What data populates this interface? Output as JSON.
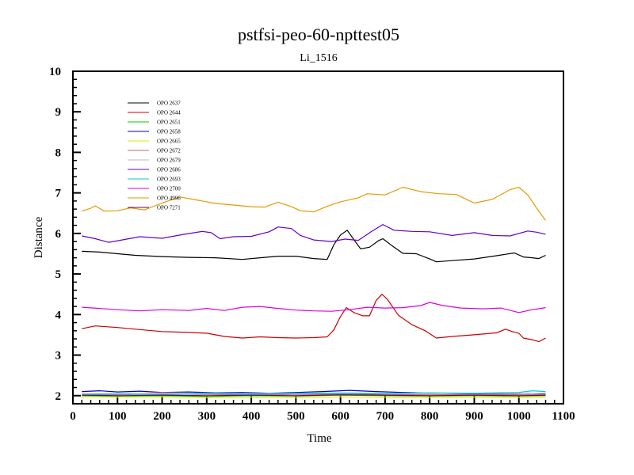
{
  "chart_data": {
    "type": "line",
    "title": "pstfsi-peo-60-npttest05",
    "subtitle": "Li_1516",
    "xlabel": "Time",
    "ylabel": "Distance",
    "xlim": [
      0,
      1100
    ],
    "ylim": [
      1.8,
      10
    ],
    "xticks": [
      0,
      100,
      200,
      300,
      400,
      500,
      600,
      700,
      800,
      900,
      1000,
      1100
    ],
    "yticks": [
      2,
      3,
      4,
      5,
      6,
      7,
      8,
      9,
      10
    ],
    "legend_position": "top-left",
    "grid": false,
    "series": [
      {
        "name": "OPO 2637",
        "color": "#000000",
        "points": [
          [
            20,
            5.56
          ],
          [
            60,
            5.54
          ],
          [
            100,
            5.5
          ],
          [
            140,
            5.46
          ],
          [
            200,
            5.43
          ],
          [
            260,
            5.41
          ],
          [
            320,
            5.4
          ],
          [
            380,
            5.36
          ],
          [
            420,
            5.4
          ],
          [
            460,
            5.44
          ],
          [
            500,
            5.44
          ],
          [
            540,
            5.38
          ],
          [
            570,
            5.36
          ],
          [
            585,
            5.72
          ],
          [
            600,
            5.96
          ],
          [
            615,
            6.08
          ],
          [
            630,
            5.85
          ],
          [
            645,
            5.62
          ],
          [
            665,
            5.66
          ],
          [
            685,
            5.82
          ],
          [
            695,
            5.87
          ],
          [
            715,
            5.7
          ],
          [
            740,
            5.51
          ],
          [
            770,
            5.5
          ],
          [
            800,
            5.37
          ],
          [
            815,
            5.3
          ],
          [
            850,
            5.33
          ],
          [
            900,
            5.37
          ],
          [
            950,
            5.45
          ],
          [
            990,
            5.52
          ],
          [
            1010,
            5.42
          ],
          [
            1030,
            5.4
          ],
          [
            1045,
            5.38
          ],
          [
            1060,
            5.46
          ]
        ]
      },
      {
        "name": "OPO 2644",
        "color": "#cc0000",
        "points": [
          [
            20,
            3.65
          ],
          [
            50,
            3.72
          ],
          [
            100,
            3.68
          ],
          [
            150,
            3.63
          ],
          [
            200,
            3.58
          ],
          [
            260,
            3.56
          ],
          [
            300,
            3.54
          ],
          [
            340,
            3.46
          ],
          [
            380,
            3.42
          ],
          [
            420,
            3.45
          ],
          [
            460,
            3.43
          ],
          [
            500,
            3.42
          ],
          [
            540,
            3.43
          ],
          [
            570,
            3.45
          ],
          [
            585,
            3.62
          ],
          [
            600,
            3.95
          ],
          [
            613,
            4.17
          ],
          [
            630,
            4.05
          ],
          [
            650,
            3.97
          ],
          [
            665,
            3.97
          ],
          [
            680,
            4.35
          ],
          [
            693,
            4.5
          ],
          [
            705,
            4.38
          ],
          [
            730,
            3.98
          ],
          [
            760,
            3.75
          ],
          [
            790,
            3.6
          ],
          [
            815,
            3.42
          ],
          [
            850,
            3.46
          ],
          [
            900,
            3.5
          ],
          [
            950,
            3.55
          ],
          [
            970,
            3.64
          ],
          [
            985,
            3.58
          ],
          [
            1000,
            3.54
          ],
          [
            1010,
            3.42
          ],
          [
            1030,
            3.38
          ],
          [
            1045,
            3.33
          ],
          [
            1060,
            3.42
          ]
        ]
      },
      {
        "name": "OPO 2651",
        "color": "#00cc00",
        "points": [
          [
            20,
            2.0
          ],
          [
            100,
            1.99
          ],
          [
            200,
            2.0
          ],
          [
            300,
            1.98
          ],
          [
            400,
            2.0
          ],
          [
            500,
            1.99
          ],
          [
            600,
            2.01
          ],
          [
            700,
            2.0
          ],
          [
            800,
            1.99
          ],
          [
            900,
            2.0
          ],
          [
            1000,
            1.99
          ],
          [
            1060,
            2.0
          ]
        ]
      },
      {
        "name": "OPO 2658",
        "color": "#0000cc",
        "points": [
          [
            20,
            2.1
          ],
          [
            60,
            2.12
          ],
          [
            100,
            2.09
          ],
          [
            150,
            2.11
          ],
          [
            200,
            2.08
          ],
          [
            260,
            2.09
          ],
          [
            320,
            2.07
          ],
          [
            380,
            2.08
          ],
          [
            440,
            2.06
          ],
          [
            500,
            2.08
          ],
          [
            560,
            2.1
          ],
          [
            620,
            2.13
          ],
          [
            680,
            2.1
          ],
          [
            740,
            2.08
          ],
          [
            800,
            2.06
          ],
          [
            860,
            2.05
          ],
          [
            920,
            2.04
          ],
          [
            980,
            2.03
          ],
          [
            1020,
            2.06
          ],
          [
            1060,
            2.04
          ]
        ]
      },
      {
        "name": "OPO 2665",
        "color": "#e6e600",
        "points": [
          [
            20,
            1.97
          ],
          [
            100,
            1.96
          ],
          [
            200,
            1.97
          ],
          [
            300,
            1.95
          ],
          [
            400,
            1.96
          ],
          [
            500,
            1.95
          ],
          [
            600,
            1.97
          ],
          [
            700,
            1.96
          ],
          [
            800,
            1.95
          ],
          [
            900,
            1.96
          ],
          [
            1000,
            1.95
          ],
          [
            1060,
            1.96
          ]
        ]
      },
      {
        "name": "OPO 2672",
        "color": "#cc6666",
        "points": [
          [
            20,
            2.03
          ],
          [
            100,
            2.02
          ],
          [
            200,
            2.04
          ],
          [
            300,
            2.03
          ],
          [
            400,
            2.02
          ],
          [
            500,
            2.03
          ],
          [
            600,
            2.04
          ],
          [
            700,
            2.03
          ],
          [
            800,
            2.02
          ],
          [
            900,
            2.03
          ],
          [
            1000,
            2.02
          ],
          [
            1060,
            2.03
          ]
        ]
      },
      {
        "name": "OPO 2679",
        "color": "#bbbbbb",
        "points": [
          [
            20,
            2.06
          ],
          [
            100,
            2.05
          ],
          [
            200,
            2.07
          ],
          [
            300,
            2.06
          ],
          [
            400,
            2.05
          ],
          [
            500,
            2.06
          ],
          [
            600,
            2.07
          ],
          [
            700,
            2.06
          ],
          [
            800,
            2.05
          ],
          [
            900,
            2.06
          ],
          [
            1000,
            2.05
          ],
          [
            1060,
            2.06
          ]
        ]
      },
      {
        "name": "OPO 2686",
        "color": "#6600cc",
        "points": [
          [
            20,
            5.94
          ],
          [
            50,
            5.87
          ],
          [
            80,
            5.78
          ],
          [
            110,
            5.84
          ],
          [
            150,
            5.92
          ],
          [
            200,
            5.88
          ],
          [
            250,
            5.98
          ],
          [
            290,
            6.05
          ],
          [
            310,
            6.02
          ],
          [
            330,
            5.87
          ],
          [
            360,
            5.92
          ],
          [
            400,
            5.93
          ],
          [
            440,
            6.04
          ],
          [
            460,
            6.16
          ],
          [
            490,
            6.12
          ],
          [
            510,
            5.95
          ],
          [
            540,
            5.84
          ],
          [
            580,
            5.8
          ],
          [
            610,
            5.86
          ],
          [
            640,
            5.83
          ],
          [
            670,
            6.05
          ],
          [
            695,
            6.22
          ],
          [
            720,
            6.08
          ],
          [
            760,
            6.05
          ],
          [
            800,
            6.04
          ],
          [
            850,
            5.95
          ],
          [
            900,
            6.02
          ],
          [
            940,
            5.95
          ],
          [
            980,
            5.94
          ],
          [
            1020,
            6.06
          ],
          [
            1040,
            6.03
          ],
          [
            1060,
            5.98
          ]
        ]
      },
      {
        "name": "OPO 2693",
        "color": "#00cccc",
        "points": [
          [
            20,
            2.02
          ],
          [
            100,
            2.04
          ],
          [
            200,
            2.02
          ],
          [
            300,
            2.05
          ],
          [
            400,
            2.03
          ],
          [
            500,
            2.05
          ],
          [
            600,
            2.06
          ],
          [
            700,
            2.05
          ],
          [
            800,
            2.07
          ],
          [
            900,
            2.06
          ],
          [
            1000,
            2.08
          ],
          [
            1030,
            2.12
          ],
          [
            1060,
            2.1
          ]
        ]
      },
      {
        "name": "OPO 2700",
        "color": "#dd00dd",
        "points": [
          [
            20,
            4.18
          ],
          [
            60,
            4.15
          ],
          [
            100,
            4.12
          ],
          [
            150,
            4.09
          ],
          [
            200,
            4.12
          ],
          [
            260,
            4.1
          ],
          [
            300,
            4.15
          ],
          [
            340,
            4.1
          ],
          [
            380,
            4.18
          ],
          [
            420,
            4.2
          ],
          [
            460,
            4.15
          ],
          [
            500,
            4.11
          ],
          [
            540,
            4.09
          ],
          [
            580,
            4.08
          ],
          [
            620,
            4.12
          ],
          [
            660,
            4.18
          ],
          [
            700,
            4.16
          ],
          [
            740,
            4.17
          ],
          [
            780,
            4.22
          ],
          [
            800,
            4.3
          ],
          [
            830,
            4.22
          ],
          [
            870,
            4.16
          ],
          [
            920,
            4.14
          ],
          [
            960,
            4.16
          ],
          [
            1000,
            4.05
          ],
          [
            1030,
            4.12
          ],
          [
            1060,
            4.17
          ]
        ]
      },
      {
        "name": "OPO 4996",
        "color": "#e69a00",
        "points": [
          [
            20,
            6.55
          ],
          [
            40,
            6.62
          ],
          [
            50,
            6.68
          ],
          [
            70,
            6.55
          ],
          [
            100,
            6.56
          ],
          [
            130,
            6.63
          ],
          [
            160,
            6.58
          ],
          [
            200,
            6.75
          ],
          [
            240,
            6.9
          ],
          [
            280,
            6.82
          ],
          [
            320,
            6.74
          ],
          [
            360,
            6.7
          ],
          [
            400,
            6.66
          ],
          [
            430,
            6.65
          ],
          [
            460,
            6.77
          ],
          [
            490,
            6.66
          ],
          [
            510,
            6.56
          ],
          [
            540,
            6.53
          ],
          [
            570,
            6.67
          ],
          [
            600,
            6.78
          ],
          [
            640,
            6.88
          ],
          [
            660,
            6.98
          ],
          [
            700,
            6.95
          ],
          [
            740,
            7.14
          ],
          [
            780,
            7.03
          ],
          [
            820,
            6.98
          ],
          [
            860,
            6.96
          ],
          [
            900,
            6.75
          ],
          [
            940,
            6.84
          ],
          [
            980,
            7.08
          ],
          [
            1000,
            7.14
          ],
          [
            1020,
            6.95
          ],
          [
            1040,
            6.62
          ],
          [
            1060,
            6.32
          ]
        ]
      },
      {
        "name": "OPO 7271",
        "color": "#660066",
        "points": [
          [
            20,
            2.01
          ],
          [
            100,
            2.0
          ],
          [
            200,
            2.01
          ],
          [
            300,
            2.0
          ],
          [
            400,
            2.01
          ],
          [
            500,
            2.0
          ],
          [
            600,
            2.02
          ],
          [
            700,
            2.01
          ],
          [
            800,
            2.0
          ],
          [
            900,
            2.01
          ],
          [
            1000,
            2.0
          ],
          [
            1060,
            2.01
          ]
        ]
      }
    ]
  }
}
